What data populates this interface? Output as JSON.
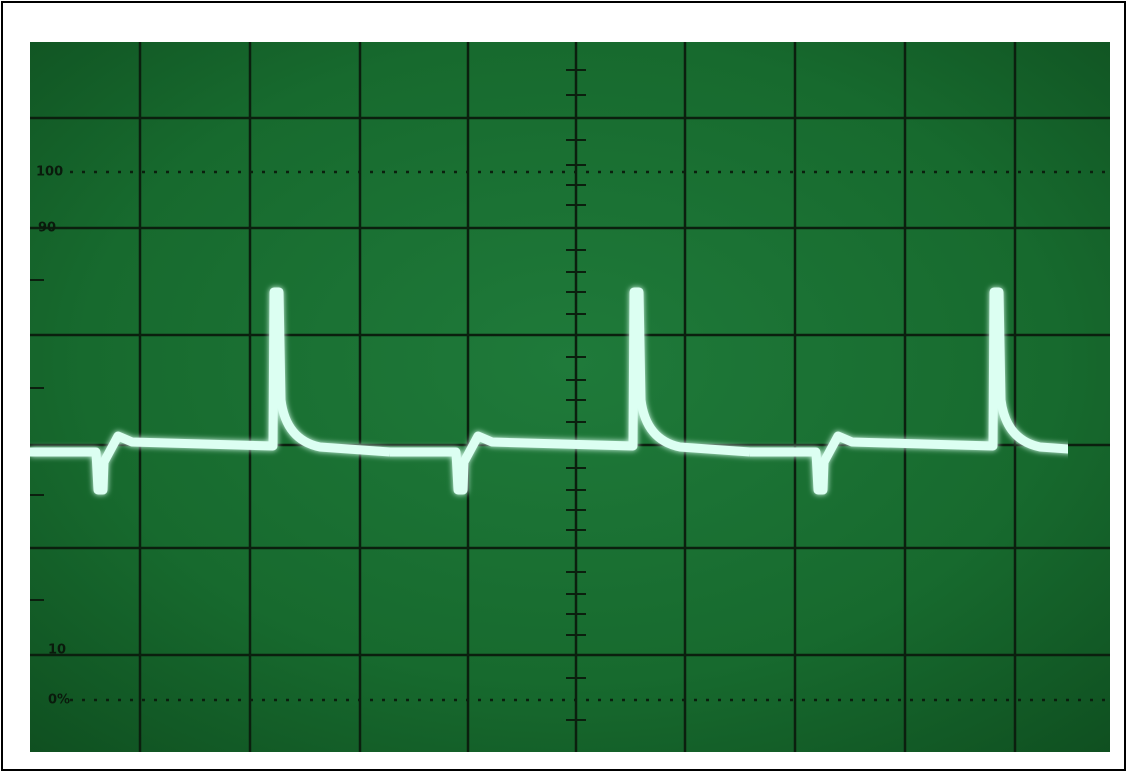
{
  "graticule_labels": [
    "100",
    "90",
    "10",
    "0%"
  ]
}
